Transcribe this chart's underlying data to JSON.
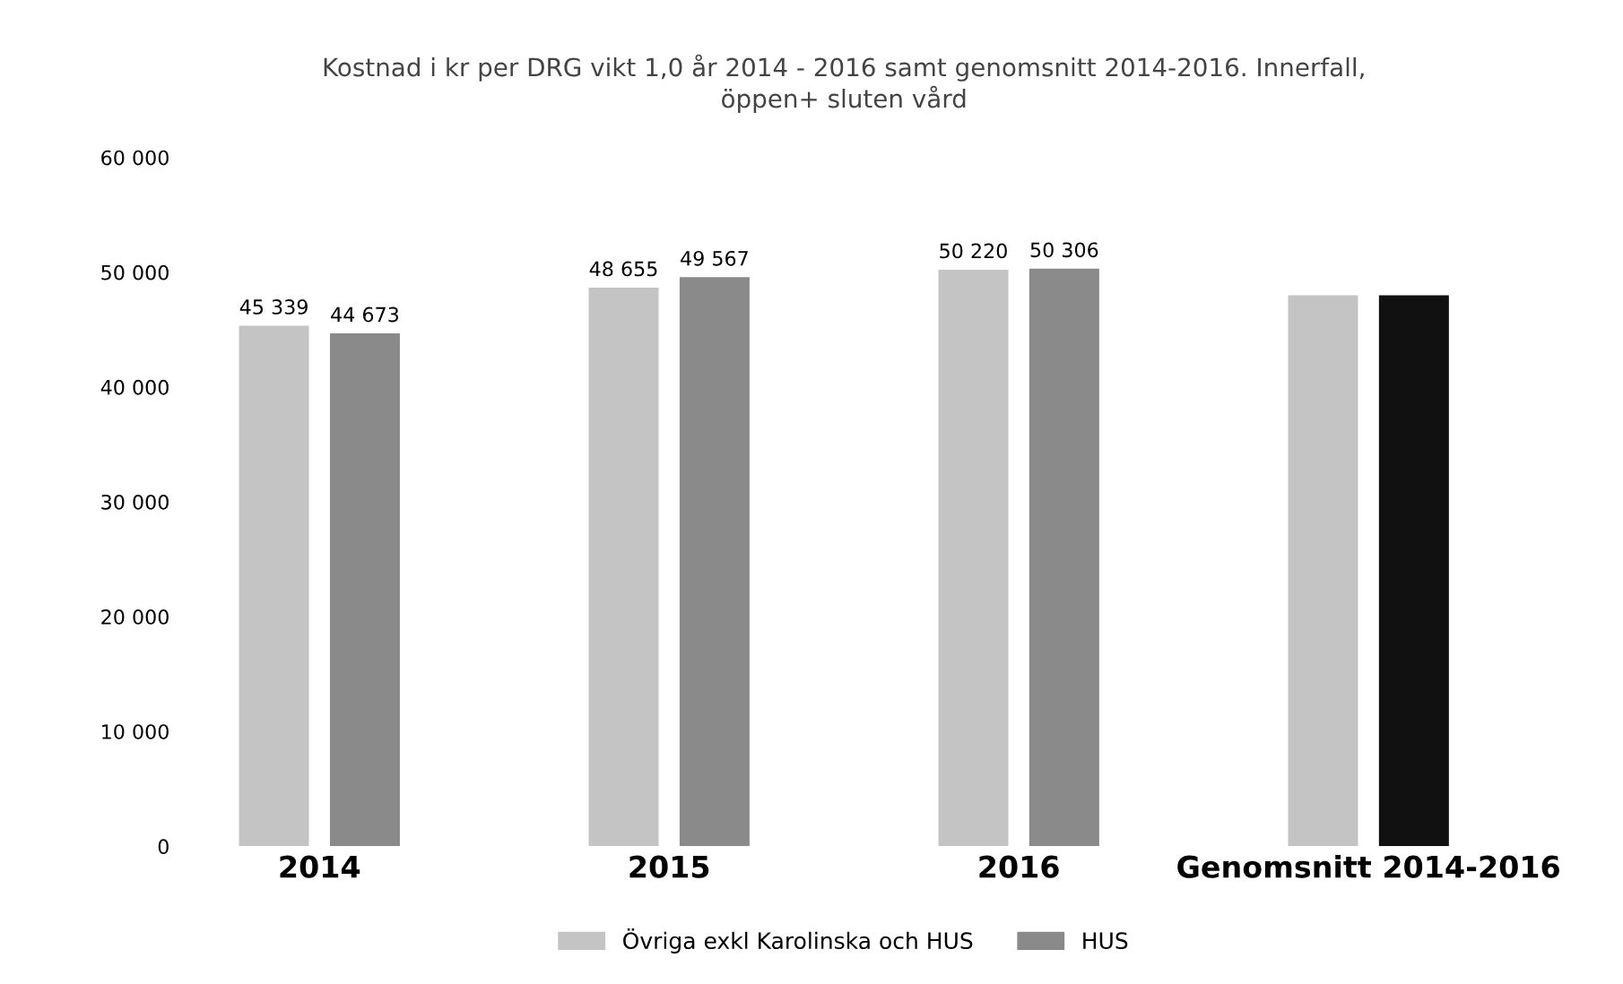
{
  "chart_data": {
    "type": "bar",
    "title": "Kostnad i kr per DRG vikt 1,0 år 2014 - 2016 samt genomsnitt 2014-2016. Innerfall,\nöppen+ sluten vård",
    "categories": [
      "2014",
      "2015",
      "2016",
      "Genomsnitt 2014-2016"
    ],
    "series": [
      {
        "name": "Övriga exkl Karolinska och HUS",
        "color": "#c4c4c4",
        "colors": [
          "#c4c4c4",
          "#c4c4c4",
          "#c4c4c4",
          "#c4c4c4"
        ],
        "values": [
          45339,
          48655,
          50220,
          48000
        ],
        "value_labels": [
          "45 339",
          "48 655",
          "50 220",
          null
        ]
      },
      {
        "name": "HUS",
        "color": "#8a8a8a",
        "colors": [
          "#8a8a8a",
          "#8a8a8a",
          "#8a8a8a",
          "#111111"
        ],
        "values": [
          44673,
          49567,
          50306,
          48000
        ],
        "value_labels": [
          "44 673",
          "49 567",
          "50 306",
          null
        ]
      }
    ],
    "ylim": [
      0,
      60000
    ],
    "yticks": [
      {
        "value": 0,
        "label": "0"
      },
      {
        "value": 10000,
        "label": "10 000"
      },
      {
        "value": 20000,
        "label": "20 000"
      },
      {
        "value": 30000,
        "label": "30 000"
      },
      {
        "value": 40000,
        "label": "40 000"
      },
      {
        "value": 50000,
        "label": "50 000"
      },
      {
        "value": 60000,
        "label": "60 000"
      }
    ],
    "grid": false,
    "legend": "bottom"
  }
}
